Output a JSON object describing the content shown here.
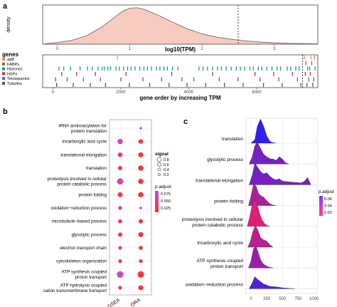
{
  "panel_labels": {
    "a": "a",
    "b": "b",
    "c": "c"
  },
  "colors": {
    "density_fill": "#f9cbc0",
    "density_line": "#6b6b6b",
    "panel_bg": "#ebebeb",
    "grid": "#ffffff",
    "genes": {
      "agB": "#f08a6e",
      "FABPs": "#8c6d2c",
      "Histones": "#1a9c8c",
      "HSPs": "#c9302c",
      "Tetraspanins": "#3a66c8",
      "Tubulins": "#555555"
    },
    "padj_low": "#ff3030",
    "padj_high": "#c34bdc",
    "ridge_low": "#2020ff",
    "ridge_high": "#ff2060"
  },
  "chart_data": [
    {
      "id": "a_top",
      "type": "area",
      "ylabel": "density",
      "xlabel": "log10(TPM)",
      "xlim": [
        -0.2,
        3.6
      ],
      "xticks": [
        0,
        1,
        2,
        3
      ],
      "xticklabels": [
        "0",
        "1",
        "2",
        "3"
      ],
      "threshold": 2.5,
      "x": [
        -0.2,
        0,
        0.2,
        0.4,
        0.6,
        0.8,
        0.9,
        1.0,
        1.1,
        1.2,
        1.4,
        1.6,
        1.8,
        2.0,
        2.2,
        2.4,
        2.6,
        2.8,
        3.0,
        3.2,
        3.4,
        3.6
      ],
      "y": [
        0,
        0.03,
        0.07,
        0.15,
        0.3,
        0.5,
        0.6,
        0.66,
        0.67,
        0.64,
        0.53,
        0.4,
        0.28,
        0.19,
        0.13,
        0.09,
        0.06,
        0.04,
        0.025,
        0.015,
        0.01,
        0.005
      ]
    },
    {
      "id": "a_bottom",
      "type": "scatter",
      "legend_title": "genes",
      "legend": [
        "agB",
        "FABPs",
        "Histones",
        "HSPs",
        "Tetraspanins",
        "Tubulins"
      ],
      "xlabel": "gene order by increasing TPM",
      "xlim": [
        -300,
        7800
      ],
      "xticks": [
        0,
        2000,
        4000,
        6000
      ],
      "xticklabels": [
        "0",
        "2000",
        "4000",
        "6000"
      ],
      "threshold": 7350,
      "series": [
        {
          "name": "agB",
          "values": [
            1900,
            7400,
            7600,
            7700
          ]
        },
        {
          "name": "FABPs",
          "values": [
            7450,
            7620
          ]
        },
        {
          "name": "Histones",
          "values": [
            180,
            320,
            520,
            800,
            1020,
            1160,
            1330,
            1450,
            1520,
            1620,
            1700,
            1860,
            1960,
            2080,
            2200,
            2300,
            2420,
            2560,
            2680,
            2780,
            2900,
            3050,
            3150,
            3270,
            3370,
            3520,
            3680,
            4300,
            4420,
            4550,
            4700,
            4850,
            4960,
            5100,
            5250,
            5400,
            5520,
            5650,
            5800,
            5900,
            6050,
            6150,
            6300,
            6450,
            6600,
            6700,
            6900,
            7000,
            7150,
            7250,
            7500,
            7560,
            7720
          ]
        },
        {
          "name": "HSPs",
          "values": [
            260,
            700,
            1250,
            2150,
            3500,
            4700,
            5950,
            6500,
            7050,
            7430,
            7580
          ]
        },
        {
          "name": "Tetraspanins",
          "values": [
            80,
            420,
            900,
            1400,
            2000,
            2650,
            3200,
            3800,
            4150,
            4900,
            5450,
            6100,
            6650,
            7200,
            7530,
            7680
          ]
        },
        {
          "name": "Tubulins",
          "values": [
            110,
            600,
            1100,
            1550,
            2250,
            2850,
            3420,
            3950,
            4500,
            5050,
            5600,
            6200,
            6750,
            7300,
            7480,
            7650
          ]
        }
      ]
    },
    {
      "id": "b",
      "type": "scatter",
      "categories": [
        "tRNA aminoacylation for\nprotein translation",
        "tricarboxylic acid cycle",
        "translational elongation",
        "translation",
        "proteolysis involved in cellular\nprotein catabolic process",
        "protein folding",
        "oxidation−reduction process",
        "microtubule−based process",
        "glycolytic process",
        "electron transport chain",
        "cytoskeleton organization",
        "ATP synthesis coupled\nproton transport",
        "ATP hydrolysis coupled\ncation transmembrane transport"
      ],
      "x": [
        "GSEA",
        "ORA"
      ],
      "legend_size_title": "signal",
      "legend_size": [
        {
          "label": "0.8",
          "value": 0.8
        },
        {
          "label": "0.6",
          "value": 0.6
        },
        {
          "label": "0.4",
          "value": 0.4
        },
        {
          "label": "0.2",
          "value": 0.2
        }
      ],
      "legend_color_title": "p.adjust",
      "legend_color_ticks": [
        "0.075",
        "0.050",
        "0.025"
      ],
      "color_range": [
        0.01,
        0.09
      ],
      "points": [
        {
          "row": 0,
          "col": 1,
          "signal": 0.1,
          "padj": 0.09
        },
        {
          "row": 1,
          "col": 0,
          "signal": 0.55,
          "padj": 0.075
        },
        {
          "row": 1,
          "col": 1,
          "signal": 0.45,
          "padj": 0.02
        },
        {
          "row": 2,
          "col": 0,
          "signal": 0.45,
          "padj": 0.04
        },
        {
          "row": 2,
          "col": 1,
          "signal": 0.5,
          "padj": 0.015
        },
        {
          "row": 3,
          "col": 0,
          "signal": 0.4,
          "padj": 0.03
        },
        {
          "row": 3,
          "col": 1,
          "signal": 0.55,
          "padj": 0.015
        },
        {
          "row": 4,
          "col": 0,
          "signal": 0.7,
          "padj": 0.07
        },
        {
          "row": 4,
          "col": 1,
          "signal": 0.55,
          "padj": 0.02
        },
        {
          "row": 5,
          "col": 0,
          "signal": 0.5,
          "padj": 0.03
        },
        {
          "row": 5,
          "col": 1,
          "signal": 0.55,
          "padj": 0.015
        },
        {
          "row": 6,
          "col": 0,
          "signal": 0.3,
          "padj": 0.04
        },
        {
          "row": 6,
          "col": 1,
          "signal": 0.08,
          "padj": 0.02
        },
        {
          "row": 7,
          "col": 0,
          "signal": 0.35,
          "padj": 0.03
        },
        {
          "row": 7,
          "col": 1,
          "signal": 0.4,
          "padj": 0.02
        },
        {
          "row": 8,
          "col": 0,
          "signal": 0.4,
          "padj": 0.03
        },
        {
          "row": 8,
          "col": 1,
          "signal": 0.5,
          "padj": 0.015
        },
        {
          "row": 9,
          "col": 0,
          "signal": 0.3,
          "padj": 0.04
        },
        {
          "row": 9,
          "col": 1,
          "signal": 0.35,
          "padj": 0.02
        },
        {
          "row": 10,
          "col": 0,
          "signal": 0.3,
          "padj": 0.03
        },
        {
          "row": 10,
          "col": 1,
          "signal": 0.3,
          "padj": 0.02
        },
        {
          "row": 11,
          "col": 0,
          "signal": 0.75,
          "padj": 0.08
        },
        {
          "row": 11,
          "col": 1,
          "signal": 0.75,
          "padj": 0.015
        },
        {
          "row": 12,
          "col": 0,
          "signal": 0.3,
          "padj": 0.03
        },
        {
          "row": 12,
          "col": 1,
          "signal": 0.5,
          "padj": 0.015
        }
      ]
    },
    {
      "id": "c",
      "type": "area",
      "categories": [
        "translation",
        "glycolytic process",
        "translational elongation",
        "protein folding",
        "proteolysis involved in cellular\nprotein catabolic process",
        "tricarboxylic acid cycle",
        "ATP synthesis coupled\nproton transport",
        "oxidation−reduction process"
      ],
      "xlim": [
        -80,
        1050
      ],
      "xticks": [
        0,
        250,
        500,
        750,
        1000
      ],
      "xticklabels": [
        "0",
        "250",
        "500",
        "750",
        "1000"
      ],
      "legend_color_title": "p.adjust",
      "legend_color_ticks": [
        "0.06",
        "0.04",
        "0.02"
      ],
      "color_range": [
        0.005,
        0.07
      ],
      "ridges": [
        {
          "padj": 0.01,
          "x": [
            0,
            60,
            100,
            150,
            200,
            250,
            300,
            350,
            400
          ],
          "y": [
            0,
            0.15,
            0.7,
            1.0,
            0.7,
            0.3,
            0.08,
            0.02,
            0
          ]
        },
        {
          "padj": 0.03,
          "x": [
            -30,
            20,
            60,
            100,
            150,
            200,
            250,
            300,
            350,
            400,
            450,
            500,
            550,
            600
          ],
          "y": [
            0,
            0.3,
            0.75,
            0.9,
            0.65,
            0.4,
            0.3,
            0.22,
            0.2,
            0.15,
            0.3,
            0.2,
            0.05,
            0
          ]
        },
        {
          "padj": 0.03,
          "x": [
            -30,
            20,
            60,
            100,
            150,
            200,
            250,
            300,
            350,
            400,
            450,
            500,
            600,
            700,
            800,
            850,
            900,
            950
          ],
          "y": [
            0,
            0.4,
            0.9,
            0.75,
            0.55,
            0.45,
            0.5,
            0.35,
            0.25,
            0.2,
            0.25,
            0.15,
            0.12,
            0.1,
            0.08,
            0.15,
            0.3,
            0
          ]
        },
        {
          "padj": 0.045,
          "x": [
            -40,
            0,
            40,
            80,
            120,
            160,
            200,
            250,
            300,
            350,
            400
          ],
          "y": [
            0,
            0.4,
            0.9,
            0.8,
            0.5,
            0.4,
            0.35,
            0.2,
            0.08,
            0.02,
            0
          ]
        },
        {
          "padj": 0.06,
          "x": [
            -60,
            -20,
            20,
            60,
            100,
            140,
            180,
            220,
            260,
            300
          ],
          "y": [
            0,
            0.4,
            0.9,
            1.1,
            0.9,
            0.5,
            0.25,
            0.1,
            0.03,
            0
          ]
        },
        {
          "padj": 0.05,
          "x": [
            -50,
            -10,
            30,
            70,
            110,
            150,
            200,
            250,
            300,
            350
          ],
          "y": [
            0,
            0.25,
            0.65,
            0.9,
            0.7,
            0.4,
            0.3,
            0.25,
            0.1,
            0
          ]
        },
        {
          "padj": 0.04,
          "x": [
            -40,
            0,
            40,
            80,
            120,
            160,
            200,
            250,
            300,
            350
          ],
          "y": [
            0,
            0.3,
            0.8,
            0.9,
            0.6,
            0.3,
            0.15,
            0.08,
            0.03,
            0
          ]
        },
        {
          "padj": 0.02,
          "x": [
            -30,
            20,
            60,
            100,
            150,
            200,
            250,
            300,
            400,
            500,
            600,
            700
          ],
          "y": [
            0,
            0.25,
            0.5,
            0.4,
            0.3,
            0.2,
            0.15,
            0.1,
            0.08,
            0.04,
            0.02,
            0
          ]
        }
      ]
    }
  ]
}
